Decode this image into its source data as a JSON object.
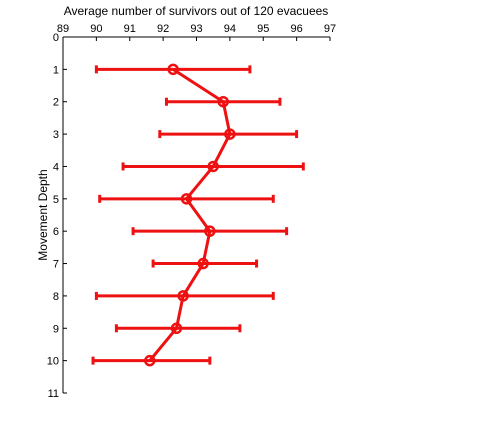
{
  "chart_data": {
    "type": "line",
    "title": "",
    "xlabel": "Average number of survivors out of 120 evacuees",
    "ylabel": "Movement Depth",
    "xlim": [
      89,
      97
    ],
    "ylim": [
      0,
      11
    ],
    "x_ticks": [
      89,
      90,
      91,
      92,
      93,
      94,
      95,
      96,
      97
    ],
    "y_ticks": [
      0,
      1,
      2,
      3,
      4,
      5,
      6,
      7,
      8,
      9,
      10,
      11
    ],
    "x_axis_position": "top",
    "y_axis_inverted": true,
    "grid": false,
    "series_color": "#ee1111",
    "points": [
      {
        "depth": 1,
        "mean": 92.3,
        "low": 90.0,
        "high": 94.6
      },
      {
        "depth": 2,
        "mean": 93.8,
        "low": 92.1,
        "high": 95.5
      },
      {
        "depth": 3,
        "mean": 94.0,
        "low": 91.9,
        "high": 96.0
      },
      {
        "depth": 4,
        "mean": 93.5,
        "low": 90.8,
        "high": 96.2
      },
      {
        "depth": 5,
        "mean": 92.7,
        "low": 90.1,
        "high": 95.3
      },
      {
        "depth": 6,
        "mean": 93.4,
        "low": 91.1,
        "high": 95.7
      },
      {
        "depth": 7,
        "mean": 93.2,
        "low": 91.7,
        "high": 94.8
      },
      {
        "depth": 8,
        "mean": 92.6,
        "low": 90.0,
        "high": 95.3
      },
      {
        "depth": 9,
        "mean": 92.4,
        "low": 90.6,
        "high": 94.3
      },
      {
        "depth": 10,
        "mean": 91.6,
        "low": 89.9,
        "high": 93.4
      }
    ]
  }
}
